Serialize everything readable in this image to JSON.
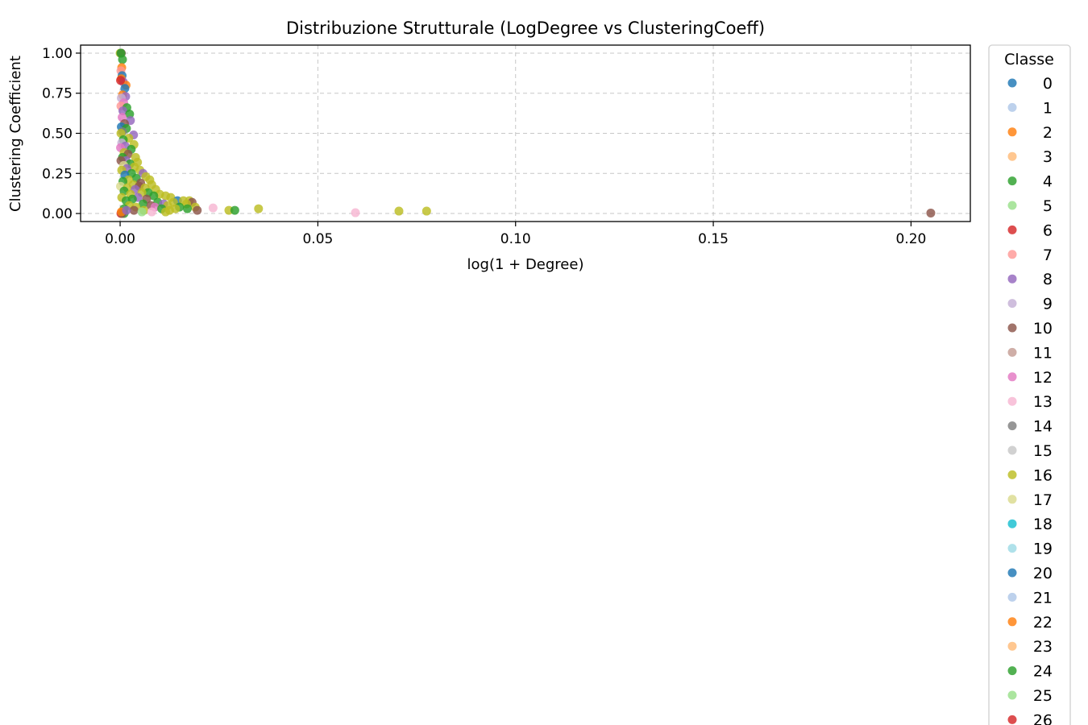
{
  "chart_data": {
    "type": "scatter",
    "title": "Distribuzione Strutturale (LogDegree vs ClusteringCoeff)",
    "xlabel": "log(1 + Degree)",
    "ylabel": "Clustering Coefficient",
    "xlim": [
      -0.01,
      0.215
    ],
    "ylim": [
      -0.05,
      1.05
    ],
    "xticks": [
      0.0,
      0.05,
      0.1,
      0.15,
      0.2
    ],
    "xtick_labels": [
      "0.00",
      "0.05",
      "0.10",
      "0.15",
      "0.20"
    ],
    "yticks": [
      0.0,
      0.25,
      0.5,
      0.75,
      1.0
    ],
    "ytick_labels": [
      "0.00",
      "0.25",
      "0.50",
      "0.75",
      "1.00"
    ],
    "grid": true,
    "legend": {
      "title": "Classe",
      "placement": "outside-right",
      "entries": [
        {
          "label": "0",
          "color": "#1f77b4"
        },
        {
          "label": "1",
          "color": "#aec7e8"
        },
        {
          "label": "2",
          "color": "#ff7f0e"
        },
        {
          "label": "3",
          "color": "#ffbb78"
        },
        {
          "label": "4",
          "color": "#2ca02c"
        },
        {
          "label": "5",
          "color": "#98df8a"
        },
        {
          "label": "6",
          "color": "#d62728"
        },
        {
          "label": "7",
          "color": "#ff9896"
        },
        {
          "label": "8",
          "color": "#9467bd"
        },
        {
          "label": "9",
          "color": "#c5b0d5"
        },
        {
          "label": "10",
          "color": "#8c564b"
        },
        {
          "label": "11",
          "color": "#c49c94"
        },
        {
          "label": "12",
          "color": "#e377c2"
        },
        {
          "label": "13",
          "color": "#f7b6d2"
        },
        {
          "label": "14",
          "color": "#7f7f7f"
        },
        {
          "label": "15",
          "color": "#c7c7c7"
        },
        {
          "label": "16",
          "color": "#bcbd22"
        },
        {
          "label": "17",
          "color": "#dbdb8d"
        },
        {
          "label": "18",
          "color": "#17becf"
        },
        {
          "label": "19",
          "color": "#9edae5"
        },
        {
          "label": "20",
          "color": "#1f77b4"
        },
        {
          "label": "21",
          "color": "#aec7e8"
        },
        {
          "label": "22",
          "color": "#ff7f0e"
        },
        {
          "label": "23",
          "color": "#ffbb78"
        },
        {
          "label": "24",
          "color": "#2ca02c"
        },
        {
          "label": "25",
          "color": "#98df8a"
        },
        {
          "label": "26",
          "color": "#d62728"
        }
      ]
    },
    "points": [
      {
        "x": 0.0,
        "y": 1.0,
        "c": 16
      },
      {
        "x": 0.0003,
        "y": 1.0,
        "c": 10
      },
      {
        "x": 0.0002,
        "y": 1.0,
        "c": 4
      },
      {
        "x": 0.0006,
        "y": 0.96,
        "c": 4
      },
      {
        "x": 0.0004,
        "y": 0.91,
        "c": 2
      },
      {
        "x": 0.0002,
        "y": 0.89,
        "c": 7
      },
      {
        "x": 0.0005,
        "y": 0.86,
        "c": 0
      },
      {
        "x": 0.0003,
        "y": 0.84,
        "c": 2
      },
      {
        "x": 0.0008,
        "y": 0.82,
        "c": 8
      },
      {
        "x": 0.0015,
        "y": 0.8,
        "c": 2
      },
      {
        "x": 0.0001,
        "y": 0.83,
        "c": 6
      },
      {
        "x": 0.0012,
        "y": 0.78,
        "c": 0
      },
      {
        "x": 0.0006,
        "y": 0.74,
        "c": 2
      },
      {
        "x": 0.0014,
        "y": 0.73,
        "c": 8
      },
      {
        "x": 0.0003,
        "y": 0.72,
        "c": 9
      },
      {
        "x": 0.0009,
        "y": 0.69,
        "c": 12
      },
      {
        "x": 0.0002,
        "y": 0.67,
        "c": 7
      },
      {
        "x": 0.0017,
        "y": 0.66,
        "c": 4
      },
      {
        "x": 0.0007,
        "y": 0.64,
        "c": 8
      },
      {
        "x": 0.0024,
        "y": 0.62,
        "c": 4
      },
      {
        "x": 0.0005,
        "y": 0.6,
        "c": 12
      },
      {
        "x": 0.0026,
        "y": 0.58,
        "c": 8
      },
      {
        "x": 0.0011,
        "y": 0.56,
        "c": 10
      },
      {
        "x": 0.0003,
        "y": 0.54,
        "c": 0
      },
      {
        "x": 0.0016,
        "y": 0.53,
        "c": 4
      },
      {
        "x": 0.0006,
        "y": 0.51,
        "c": 14
      },
      {
        "x": 0.0002,
        "y": 0.5,
        "c": 16
      },
      {
        "x": 0.0034,
        "y": 0.49,
        "c": 8
      },
      {
        "x": 0.0022,
        "y": 0.47,
        "c": 16
      },
      {
        "x": 0.0008,
        "y": 0.46,
        "c": 4
      },
      {
        "x": 0.0004,
        "y": 0.44,
        "c": 9
      },
      {
        "x": 0.0035,
        "y": 0.43,
        "c": 16
      },
      {
        "x": 0.0013,
        "y": 0.42,
        "c": 8
      },
      {
        "x": 0.0001,
        "y": 0.41,
        "c": 12
      },
      {
        "x": 0.0028,
        "y": 0.4,
        "c": 4
      },
      {
        "x": 0.001,
        "y": 0.38,
        "c": 16
      },
      {
        "x": 0.002,
        "y": 0.37,
        "c": 10
      },
      {
        "x": 0.0039,
        "y": 0.35,
        "c": 16
      },
      {
        "x": 0.0006,
        "y": 0.35,
        "c": 4
      },
      {
        "x": 0.0015,
        "y": 0.33,
        "c": 8
      },
      {
        "x": 0.0002,
        "y": 0.33,
        "c": 10
      },
      {
        "x": 0.0044,
        "y": 0.32,
        "c": 16
      },
      {
        "x": 0.0025,
        "y": 0.31,
        "c": 4
      },
      {
        "x": 0.0009,
        "y": 0.3,
        "c": 17
      },
      {
        "x": 0.0036,
        "y": 0.29,
        "c": 16
      },
      {
        "x": 0.0017,
        "y": 0.28,
        "c": 8
      },
      {
        "x": 0.005,
        "y": 0.27,
        "c": 16
      },
      {
        "x": 0.0004,
        "y": 0.27,
        "c": 16
      },
      {
        "x": 0.0058,
        "y": 0.25,
        "c": 8
      },
      {
        "x": 0.0029,
        "y": 0.25,
        "c": 4
      },
      {
        "x": 0.0012,
        "y": 0.24,
        "c": 0
      },
      {
        "x": 0.0065,
        "y": 0.23,
        "c": 16
      },
      {
        "x": 0.0041,
        "y": 0.22,
        "c": 4
      },
      {
        "x": 0.0021,
        "y": 0.21,
        "c": 16
      },
      {
        "x": 0.0075,
        "y": 0.21,
        "c": 16
      },
      {
        "x": 0.0007,
        "y": 0.2,
        "c": 4
      },
      {
        "x": 0.0052,
        "y": 0.19,
        "c": 10
      },
      {
        "x": 0.0033,
        "y": 0.18,
        "c": 16
      },
      {
        "x": 0.008,
        "y": 0.18,
        "c": 16
      },
      {
        "x": 0.0001,
        "y": 0.17,
        "c": 17
      },
      {
        "x": 0.0048,
        "y": 0.17,
        "c": 10
      },
      {
        "x": 0.0018,
        "y": 0.16,
        "c": 16
      },
      {
        "x": 0.0063,
        "y": 0.16,
        "c": 16
      },
      {
        "x": 0.009,
        "y": 0.15,
        "c": 16
      },
      {
        "x": 0.0038,
        "y": 0.15,
        "c": 8
      },
      {
        "x": 0.001,
        "y": 0.14,
        "c": 4
      },
      {
        "x": 0.0071,
        "y": 0.13,
        "c": 4
      },
      {
        "x": 0.0055,
        "y": 0.13,
        "c": 16
      },
      {
        "x": 0.0026,
        "y": 0.12,
        "c": 16
      },
      {
        "x": 0.01,
        "y": 0.12,
        "c": 16
      },
      {
        "x": 0.0115,
        "y": 0.11,
        "c": 16
      },
      {
        "x": 0.0085,
        "y": 0.11,
        "c": 4
      },
      {
        "x": 0.0045,
        "y": 0.1,
        "c": 8
      },
      {
        "x": 0.0004,
        "y": 0.1,
        "c": 16
      },
      {
        "x": 0.0128,
        "y": 0.1,
        "c": 16
      },
      {
        "x": 0.0031,
        "y": 0.09,
        "c": 4
      },
      {
        "x": 0.0067,
        "y": 0.09,
        "c": 10
      },
      {
        "x": 0.0145,
        "y": 0.08,
        "c": 0
      },
      {
        "x": 0.016,
        "y": 0.08,
        "c": 16
      },
      {
        "x": 0.0175,
        "y": 0.08,
        "c": 16
      },
      {
        "x": 0.0015,
        "y": 0.08,
        "c": 4
      },
      {
        "x": 0.0095,
        "y": 0.07,
        "c": 4
      },
      {
        "x": 0.0135,
        "y": 0.07,
        "c": 16
      },
      {
        "x": 0.0182,
        "y": 0.07,
        "c": 10
      },
      {
        "x": 0.0058,
        "y": 0.06,
        "c": 4
      },
      {
        "x": 0.011,
        "y": 0.06,
        "c": 8
      },
      {
        "x": 0.0168,
        "y": 0.06,
        "c": 16
      },
      {
        "x": 0.0023,
        "y": 0.05,
        "c": 16
      },
      {
        "x": 0.0078,
        "y": 0.05,
        "c": 10
      },
      {
        "x": 0.012,
        "y": 0.05,
        "c": 16
      },
      {
        "x": 0.015,
        "y": 0.04,
        "c": 4
      },
      {
        "x": 0.019,
        "y": 0.04,
        "c": 16
      },
      {
        "x": 0.004,
        "y": 0.04,
        "c": 16
      },
      {
        "x": 0.0088,
        "y": 0.04,
        "c": 12
      },
      {
        "x": 0.0105,
        "y": 0.03,
        "c": 4
      },
      {
        "x": 0.014,
        "y": 0.03,
        "c": 16
      },
      {
        "x": 0.017,
        "y": 0.03,
        "c": 4
      },
      {
        "x": 0.0195,
        "y": 0.02,
        "c": 10
      },
      {
        "x": 0.001,
        "y": 0.03,
        "c": 4
      },
      {
        "x": 0.006,
        "y": 0.02,
        "c": 16
      },
      {
        "x": 0.0125,
        "y": 0.02,
        "c": 16
      },
      {
        "x": 0.0035,
        "y": 0.02,
        "c": 10
      },
      {
        "x": 0.008,
        "y": 0.01,
        "c": 13
      },
      {
        "x": 0.0115,
        "y": 0.01,
        "c": 16
      },
      {
        "x": 0.0055,
        "y": 0.01,
        "c": 5
      },
      {
        "x": 0.0002,
        "y": 0.0,
        "c": 6
      },
      {
        "x": 0.001,
        "y": 0.0,
        "c": 4
      },
      {
        "x": 0.0005,
        "y": 0.0,
        "c": 10
      },
      {
        "x": 0.0003,
        "y": 0.01,
        "c": 2
      },
      {
        "x": 0.0016,
        "y": 0.02,
        "c": 8
      },
      {
        "x": 0.0235,
        "y": 0.035,
        "c": 13
      },
      {
        "x": 0.0275,
        "y": 0.02,
        "c": 16
      },
      {
        "x": 0.029,
        "y": 0.02,
        "c": 4
      },
      {
        "x": 0.035,
        "y": 0.03,
        "c": 16
      },
      {
        "x": 0.0595,
        "y": 0.005,
        "c": 13
      },
      {
        "x": 0.0705,
        "y": 0.015,
        "c": 16
      },
      {
        "x": 0.0775,
        "y": 0.015,
        "c": 16
      },
      {
        "x": 0.205,
        "y": 0.003,
        "c": 10
      }
    ]
  }
}
